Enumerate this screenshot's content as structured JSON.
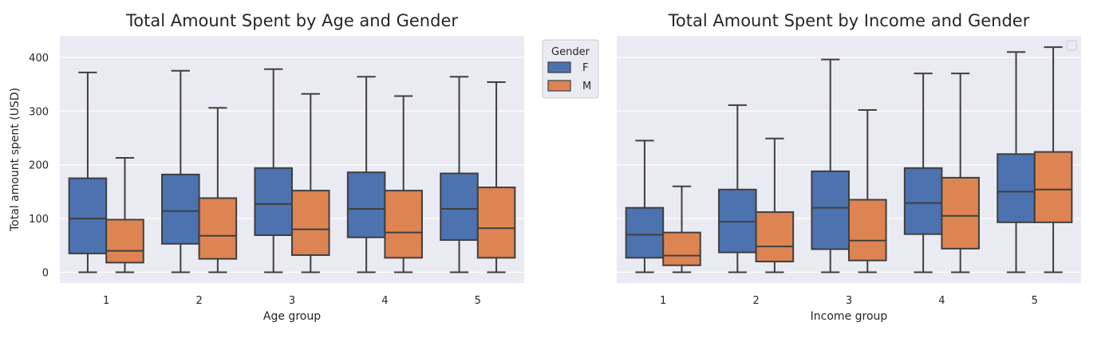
{
  "chart_data": [
    {
      "type": "box",
      "title": "Total Amount Spent by Age and Gender",
      "xlabel": "Age group",
      "ylabel": "Total amount spent (USD)",
      "categories": [
        "1",
        "2",
        "3",
        "4",
        "5"
      ],
      "yticks": [
        "0",
        "100",
        "200",
        "300",
        "400"
      ],
      "ylim": [
        -20,
        440
      ],
      "grid": true,
      "legend": {
        "title": "Gender",
        "position": "outside-top-right",
        "entries": [
          "F",
          "M"
        ]
      },
      "series": [
        {
          "name": "F",
          "color": "#4c72b0",
          "boxes": [
            {
              "whisker_low": 0,
              "q1": 35,
              "median": 100,
              "q3": 175,
              "whisker_high": 372
            },
            {
              "whisker_low": 0,
              "q1": 53,
              "median": 114,
              "q3": 182,
              "whisker_high": 375
            },
            {
              "whisker_low": 0,
              "q1": 69,
              "median": 127,
              "q3": 194,
              "whisker_high": 378
            },
            {
              "whisker_low": 0,
              "q1": 65,
              "median": 118,
              "q3": 186,
              "whisker_high": 364
            },
            {
              "whisker_low": 0,
              "q1": 60,
              "median": 118,
              "q3": 184,
              "whisker_high": 364
            }
          ]
        },
        {
          "name": "M",
          "color": "#dd8452",
          "boxes": [
            {
              "whisker_low": 0,
              "q1": 18,
              "median": 40,
              "q3": 98,
              "whisker_high": 213
            },
            {
              "whisker_low": 0,
              "q1": 25,
              "median": 68,
              "q3": 138,
              "whisker_high": 306
            },
            {
              "whisker_low": 0,
              "q1": 32,
              "median": 80,
              "q3": 152,
              "whisker_high": 332
            },
            {
              "whisker_low": 0,
              "q1": 27,
              "median": 74,
              "q3": 152,
              "whisker_high": 328
            },
            {
              "whisker_low": 0,
              "q1": 27,
              "median": 82,
              "q3": 158,
              "whisker_high": 354
            }
          ]
        }
      ]
    },
    {
      "type": "box",
      "title": "Total Amount Spent by Income and Gender",
      "xlabel": "Income group",
      "ylabel": "",
      "categories": [
        "1",
        "2",
        "3",
        "4",
        "5"
      ],
      "yticks": [],
      "ylim": [
        -20,
        440
      ],
      "grid": true,
      "legend": {
        "title": "",
        "position": "top-right",
        "entries": []
      },
      "series": [
        {
          "name": "F",
          "color": "#4c72b0",
          "boxes": [
            {
              "whisker_low": 0,
              "q1": 27,
              "median": 70,
              "q3": 120,
              "whisker_high": 245
            },
            {
              "whisker_low": 0,
              "q1": 37,
              "median": 94,
              "q3": 154,
              "whisker_high": 311
            },
            {
              "whisker_low": 0,
              "q1": 43,
              "median": 120,
              "q3": 188,
              "whisker_high": 396
            },
            {
              "whisker_low": 0,
              "q1": 71,
              "median": 129,
              "q3": 194,
              "whisker_high": 370
            },
            {
              "whisker_low": 0,
              "q1": 93,
              "median": 150,
              "q3": 220,
              "whisker_high": 410
            }
          ]
        },
        {
          "name": "M",
          "color": "#dd8452",
          "boxes": [
            {
              "whisker_low": 0,
              "q1": 13,
              "median": 31,
              "q3": 74,
              "whisker_high": 160
            },
            {
              "whisker_low": 0,
              "q1": 20,
              "median": 48,
              "q3": 112,
              "whisker_high": 249
            },
            {
              "whisker_low": 0,
              "q1": 22,
              "median": 59,
              "q3": 135,
              "whisker_high": 302
            },
            {
              "whisker_low": 0,
              "q1": 44,
              "median": 105,
              "q3": 176,
              "whisker_high": 370
            },
            {
              "whisker_low": 0,
              "q1": 93,
              "median": 154,
              "q3": 224,
              "whisker_high": 419
            }
          ]
        }
      ]
    }
  ],
  "style": {
    "plot_background": "#eaeaf2",
    "grid_color": "#ffffff",
    "line_color": "#3f3f3f",
    "text_color": "#262626"
  }
}
